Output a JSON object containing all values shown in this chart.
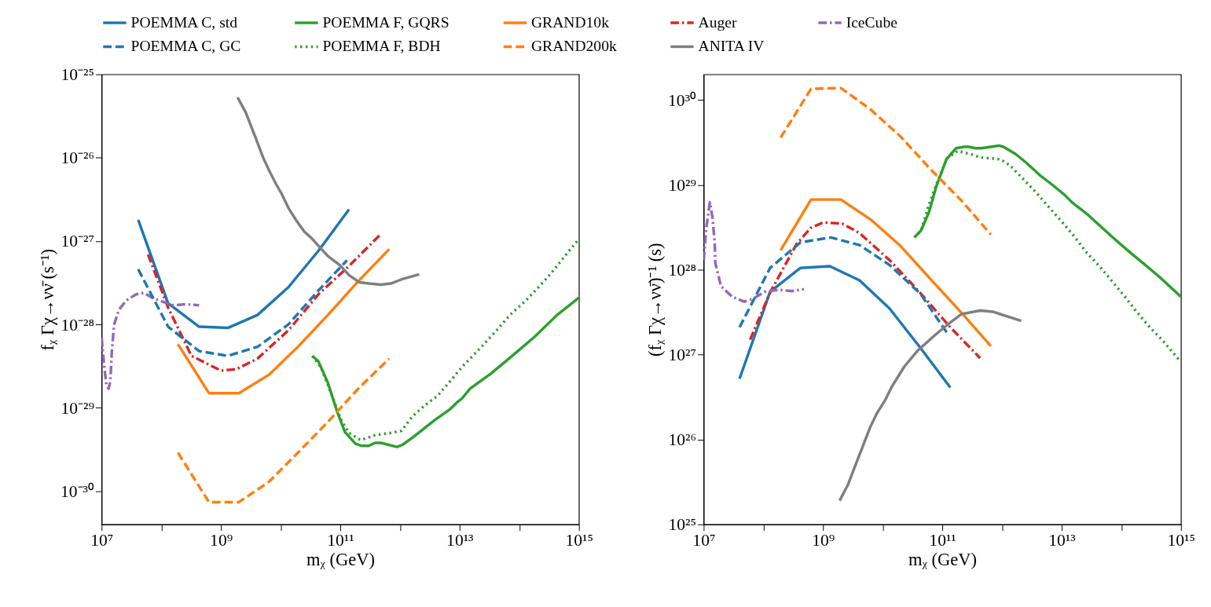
{
  "chart_data": [
    {
      "type": "line",
      "log": "xy",
      "legend": "top",
      "xlabel": "mᵪ (GeV)",
      "ylabel": "fᵪ Γχ→νν̄ (s⁻¹)",
      "xlim": [
        10000000.0,
        1000000000000000.0
      ],
      "ylim": [
        4e-31,
        1e-25
      ],
      "xticks": [
        {
          "value": 10000000.0,
          "label": "10⁷"
        },
        {
          "value": 100000000.0,
          "label": null
        },
        {
          "value": 1000000000.0,
          "label": "10⁹"
        },
        {
          "value": 10000000000.0,
          "label": null
        },
        {
          "value": 100000000000.0,
          "label": "10¹¹"
        },
        {
          "value": 1000000000000.0,
          "label": null
        },
        {
          "value": 10000000000000.0,
          "label": "10¹³"
        },
        {
          "value": 100000000000000.0,
          "label": null
        },
        {
          "value": 1000000000000000.0,
          "label": "10¹⁵"
        }
      ],
      "yticks": [
        {
          "value": 1e-30,
          "label": "10⁻³⁰"
        },
        {
          "value": 1e-29,
          "label": "10⁻²⁹"
        },
        {
          "value": 1e-28,
          "label": "10⁻²⁸"
        },
        {
          "value": 1e-27,
          "label": "10⁻²⁷"
        },
        {
          "value": 1e-26,
          "label": "10⁻²⁶"
        },
        {
          "value": 1e-25,
          "label": "10⁻²⁵"
        }
      ],
      "series": [
        {
          "name": "POEMMA C, std",
          "color": "#1f77b4",
          "line_style": "solid",
          "x": [
            41000000.0,
            130000000.0,
            430000000.0,
            1300000000.0,
            4100000000.0,
            13500000000.0,
            44000000000.0,
            140000000000.0
          ],
          "values": [
            1.8e-27,
            1.8e-28,
            9.4e-29,
            9.1e-29,
            1.3e-28,
            2.8e-28,
            7.8e-28,
            2.4e-27
          ]
        },
        {
          "name": "POEMMA F, GQRS",
          "color": "#2ca02c",
          "line_style": "solid",
          "x": [
            34000000000.0,
            43000000000.0,
            62000000000.0,
            89000000000.0,
            120000000000.0,
            180000000000.0,
            230000000000.0,
            300000000000.0,
            380000000000.0,
            480000000000.0,
            890000000000.0,
            1100000000000.0,
            1700000000000.0,
            3800000000000.0,
            7000000000000.0,
            8900000000000.0,
            11000000000000.0,
            15000000000000.0,
            34000000000000.0,
            79000000000000.0,
            180000000000000.0,
            430000000000000.0,
            1000000000000000.0
          ],
          "values": [
            4.2e-29,
            3.6e-29,
            2e-29,
            8.9e-30,
            5.1e-30,
            3.7e-30,
            3.5e-30,
            3.5e-30,
            3.8e-30,
            3.8e-30,
            3.4e-30,
            3.6e-30,
            4.5e-30,
            7.1e-30,
            9.7e-30,
            1.15e-29,
            1.3e-29,
            1.7e-29,
            2.6e-29,
            4.3e-29,
            7.1e-29,
            1.3e-28,
            2.1e-28
          ]
        },
        {
          "name": "GRAND10k",
          "color": "#ff7f0e",
          "line_style": "solid",
          "x": [
            190000000.0,
            630000000.0,
            2000000000.0,
            6400000000.0,
            19500000000.0,
            62000000000.0,
            200000000000.0,
            660000000000.0
          ],
          "values": [
            5.8e-29,
            1.5e-29,
            1.5e-29,
            2.5e-29,
            5.4e-29,
            1.3e-28,
            3.3e-28,
            8e-28
          ]
        },
        {
          "name": "Auger",
          "color": "#d62728",
          "line_style": "dashdot",
          "x": [
            60000000.0,
            130000000.0,
            320000000.0,
            1000000000.0,
            1800000000.0,
            4100000000.0,
            13500000000.0,
            43000000000.0,
            135000000000.0,
            470000000000.0
          ],
          "values": [
            6.9e-28,
            1.6e-28,
            4.2e-29,
            2.8e-29,
            2.9e-29,
            3.9e-29,
            8.5e-29,
            2.3e-28,
            4.9e-28,
            1.2e-27
          ]
        },
        {
          "name": "IceCube",
          "color": "#9467bd",
          "line_style": "dashdot",
          "x": [
            10000000.0,
            11000000.0,
            12000000.0,
            13100000.0,
            14000000.0,
            14900000.0,
            16200000.0,
            19500000.0,
            26000000.0,
            38000000.0,
            51000000.0,
            70000000.0,
            100000000.0,
            160000000.0,
            260000000.0,
            430000000.0
          ],
          "values": [
            6.9e-29,
            3.3e-29,
            1.9e-29,
            1.7e-29,
            2.1e-29,
            5e-29,
            1e-28,
            1.5e-28,
            1.95e-28,
            2.3e-28,
            2.4e-28,
            2.1e-28,
            1.9e-28,
            1.7e-28,
            1.75e-28,
            1.7e-28
          ]
        },
        {
          "name": "POEMMA C, GC",
          "color": "#1f77b4",
          "line_style": "dashed",
          "x": [
            41000000.0,
            130000000.0,
            430000000.0,
            1300000000.0,
            4100000000.0,
            13500000000.0,
            44000000000.0,
            130000000000.0
          ],
          "values": [
            4.6e-28,
            9.4e-29,
            4.8e-29,
            4.2e-29,
            5.4e-29,
            1e-28,
            2.6e-28,
            5.9e-28
          ]
        },
        {
          "name": "POEMMA F, BDH",
          "color": "#2ca02c",
          "line_style": "dotted",
          "x": [
            34000000000.0,
            48000000000.0,
            70000000000.0,
            100000000000.0,
            140000000000.0,
            220000000000.0,
            380000000000.0,
            700000000000.0,
            1060000000000.0,
            1600000000000.0,
            2600000000000.0,
            4300000000000.0,
            7000000000000.0,
            11000000000000.0,
            21000000000000.0,
            38000000000000.0,
            70000000000000.0,
            130000000000000.0,
            210000000000000.0,
            340000000000000.0,
            550000000000000.0,
            1000000000000000.0
          ],
          "values": [
            4.2e-29,
            3e-29,
            1.5e-29,
            7.5e-30,
            5e-30,
            4.1e-30,
            4.7e-30,
            5e-30,
            5.3e-30,
            7.8e-30,
            1.07e-29,
            1.4e-29,
            2.1e-29,
            3.1e-29,
            5e-29,
            7.9e-29,
            1.3e-28,
            1.95e-28,
            2.8e-28,
            4.1e-28,
            6.3e-28,
            1.06e-27
          ]
        },
        {
          "name": "GRAND200k",
          "color": "#ff7f0e",
          "line_style": "dashed",
          "x": [
            190000000.0,
            630000000.0,
            2000000000.0,
            6400000000.0,
            19500000000.0,
            62000000000.0,
            200000000000.0,
            660000000000.0
          ],
          "values": [
            2.9e-30,
            7.4e-31,
            7.4e-31,
            1.3e-30,
            2.9e-30,
            6.8e-30,
            1.7e-29,
            3.9e-29
          ]
        },
        {
          "name": "ANITA IV",
          "color": "#7f7f7f",
          "line_style": "solid",
          "x": [
            1900000000.0,
            2600000000.0,
            3800000000.0,
            5100000000.0,
            6500000000.0,
            8300000000.0,
            10600000000.0,
            13500000000.0,
            18000000000.0,
            25000000000.0,
            34000000000.0,
            45000000000.0,
            62000000000.0,
            100000000000.0,
            140000000000.0,
            210000000000.0,
            300000000000.0,
            480000000000.0,
            700000000000.0,
            1100000000000.0,
            2100000000000.0
          ],
          "values": [
            5.3e-26,
            3.5e-26,
            1.75e-26,
            1e-26,
            6.9e-27,
            4.9e-27,
            3.6e-27,
            2.5e-27,
            1.8e-27,
            1.3e-27,
            1.06e-27,
            8.5e-28,
            6.6e-28,
            5.1e-28,
            3.9e-28,
            3.2e-28,
            3.1e-28,
            3e-28,
            3.1e-28,
            3.5e-28,
            4e-28
          ]
        }
      ]
    },
    {
      "type": "line",
      "log": "xy",
      "legend": "top",
      "xlabel": "mᵪ (GeV)",
      "ylabel": "(fᵪ Γχ→νν̄)⁻¹ (s)",
      "xlim": [
        10000000.0,
        1000000000000000.0
      ],
      "ylim": [
        1e+25,
        2e+30
      ],
      "xticks": [
        {
          "value": 10000000.0,
          "label": "10⁷"
        },
        {
          "value": 100000000.0,
          "label": null
        },
        {
          "value": 1000000000.0,
          "label": "10⁹"
        },
        {
          "value": 10000000000.0,
          "label": null
        },
        {
          "value": 100000000000.0,
          "label": "10¹¹"
        },
        {
          "value": 1000000000000.0,
          "label": null
        },
        {
          "value": 10000000000000.0,
          "label": "10¹³"
        },
        {
          "value": 100000000000000.0,
          "label": null
        },
        {
          "value": 1000000000000000.0,
          "label": "10¹⁵"
        }
      ],
      "yticks": [
        {
          "value": 1e+25,
          "label": "10²⁵"
        },
        {
          "value": 1e+26,
          "label": "10²⁶"
        },
        {
          "value": 1e+27,
          "label": "10²⁷"
        },
        {
          "value": 1e+28,
          "label": "10²⁸"
        },
        {
          "value": 1e+29,
          "label": "10²⁹"
        },
        {
          "value": 1e+30,
          "label": "10³⁰"
        }
      ],
      "series": [
        {
          "name": "POEMMA C, std",
          "color": "#1f77b4",
          "line_style": "solid",
          "x": [
            40000000.0,
            130000000.0,
            420000000.0,
            1300000000.0,
            4100000000.0,
            13000000000.0,
            43000000000.0,
            136000000000.0
          ],
          "values": [
            5.2e+26,
            5.5e+27,
            1.05e+28,
            1.1e+28,
            7.5e+27,
            3.5e+27,
            1.2e+27,
            4.1e+26
          ]
        },
        {
          "name": "POEMMA F, GQRS",
          "color": "#2ca02c",
          "line_style": "solid",
          "x": [
            34000000000.0,
            44000000000.0,
            60000000000.0,
            79000000000.0,
            117000000000.0,
            170000000000.0,
            230000000000.0,
            280000000000.0,
            360000000000.0,
            450000000000.0,
            650000000000.0,
            890000000000.0,
            1060000000000.0,
            1700000000000.0,
            2600000000000.0,
            4300000000000.0,
            6500000000000.0,
            11000000000000.0,
            15000000000000.0,
            28000000000000.0,
            48000000000000.0,
            83000000000000.0,
            140000000000000.0,
            230000000000000.0,
            430000000000000.0,
            1000000000000000.0
          ],
          "values": [
            2.4e+28,
            2.9e+28,
            4.8e+28,
            9.5e+28,
            2e+29,
            2.7e+29,
            2.8e+29,
            2.8e+29,
            2.7e+29,
            2.7e+29,
            2.8e+29,
            2.9e+29,
            2.8e+29,
            2.3e+29,
            1.8e+29,
            1.3e+29,
            1.04e+29,
            7.7e+28,
            6.2e+28,
            4.4e+28,
            3.1e+28,
            2.2e+28,
            1.6e+28,
            1.2e+28,
            8.3e+27,
            4.8e+27
          ]
        },
        {
          "name": "GRAND10k",
          "color": "#ff7f0e",
          "line_style": "solid",
          "x": [
            195000000.0,
            630000000.0,
            2000000000.0,
            6300000000.0,
            20000000000.0,
            65000000000.0,
            210000000000.0,
            650000000000.0
          ],
          "values": [
            1.7e+28,
            6.7e+28,
            6.7e+28,
            3.9e+28,
            1.9e+28,
            7.6e+27,
            3.1e+27,
            1.26e+27
          ]
        },
        {
          "name": "Auger",
          "color": "#d62728",
          "line_style": "dashdot",
          "x": [
            60000000.0,
            130000000.0,
            360000000.0,
            620000000.0,
            1000000000.0,
            2100000000.0,
            4100000000.0,
            13000000000.0,
            43000000000.0,
            136000000000.0,
            430000000000.0
          ],
          "values": [
            1.5e+27,
            5.4e+27,
            2e+28,
            3.1e+28,
            3.6e+28,
            3.5e+28,
            2.7e+28,
            1.3e+28,
            5.3e+27,
            2.1e+27,
            9.1e+26
          ]
        },
        {
          "name": "IceCube",
          "color": "#9467bd",
          "line_style": "dashdot",
          "x": [
            10000000.0,
            11000000.0,
            12700000.0,
            14000000.0,
            15300000.0,
            15700000.0,
            19500000.0,
            30000000.0,
            48000000.0,
            65000000.0,
            106000000.0,
            180000000.0,
            300000000.0,
            480000000.0
          ],
          "values": [
            1.3e+28,
            3e+28,
            6.2e+28,
            4.2e+28,
            2.1e+28,
            1.2e+28,
            6.4e+27,
            4.8e+27,
            4.2e+27,
            4.5e+27,
            5.5e+27,
            5.8e+27,
            5.6e+27,
            5.9e+27
          ]
        },
        {
          "name": "POEMMA C, GC",
          "color": "#1f77b4",
          "line_style": "dashed",
          "x": [
            40000000.0,
            130000000.0,
            420000000.0,
            1350000000.0,
            4100000000.0,
            13000000000.0,
            43000000000.0,
            127000000000.0
          ],
          "values": [
            2.1e+27,
            1.05e+28,
            2.1e+28,
            2.4e+28,
            1.95e+28,
            1.14e+28,
            5.2e+27,
            1.7e+27
          ]
        },
        {
          "name": "POEMMA F, BDH",
          "color": "#2ca02c",
          "line_style": "dotted",
          "x": [
            34000000000.0,
            44000000000.0,
            60000000000.0,
            83000000000.0,
            120000000000.0,
            180000000000.0,
            300000000000.0,
            430000000000.0,
            650000000000.0,
            940000000000.0,
            1350000000000.0,
            2200000000000.0,
            3800000000000.0,
            6200000000000.0,
            10000000000000.0,
            16000000000000.0,
            26000000000000.0,
            43000000000000.0,
            70000000000000.0,
            110000000000000.0,
            180000000000000.0,
            300000000000000.0,
            480000000000000.0,
            940000000000000.0
          ],
          "values": [
            2.4e+28,
            2.9e+28,
            5.9e+28,
            1.1e+29,
            2.05e+29,
            2.5e+29,
            2.3e+29,
            2.1e+29,
            2.05e+29,
            2e+29,
            1.7e+29,
            1.2e+29,
            8e+28,
            5.4e+28,
            3.7e+28,
            2.5e+28,
            1.6e+28,
            1.1e+28,
            7.3e+27,
            5e+27,
            3.2e+27,
            2.1e+27,
            1.5e+27,
            8.6e+26
          ]
        },
        {
          "name": "GRAND200k",
          "color": "#ff7f0e",
          "line_style": "dashed",
          "x": [
            195000000.0,
            630000000.0,
            2000000000.0,
            6300000000.0,
            20000000000.0,
            65000000000.0,
            210000000000.0,
            650000000000.0
          ],
          "values": [
            3.6e+29,
            1.35e+30,
            1.38e+30,
            7.7e+29,
            3.7e+29,
            1.5e+29,
            6.5e+28,
            2.6e+28
          ]
        },
        {
          "name": "ANITA IV",
          "color": "#7f7f7f",
          "line_style": "solid",
          "x": [
            1900000000.0,
            2600000000.0,
            3800000000.0,
            6200000000.0,
            7900000000.0,
            11000000000.0,
            14000000000.0,
            23000000000.0,
            38000000000.0,
            62000000000.0,
            83000000000.0,
            127000000000.0,
            210000000000.0,
            430000000000.0,
            700000000000.0,
            2100000000000.0
          ],
          "values": [
            1.9e+25,
            2.9e+25,
            5.8e+25,
            1.4e+26,
            2e+26,
            2.9e+26,
            4.1e+26,
            7.2e+26,
            1.1e+27,
            1.5e+27,
            1.8e+27,
            2.3e+27,
            3e+27,
            3.3e+27,
            3.2e+27,
            2.5e+27
          ]
        }
      ]
    }
  ]
}
